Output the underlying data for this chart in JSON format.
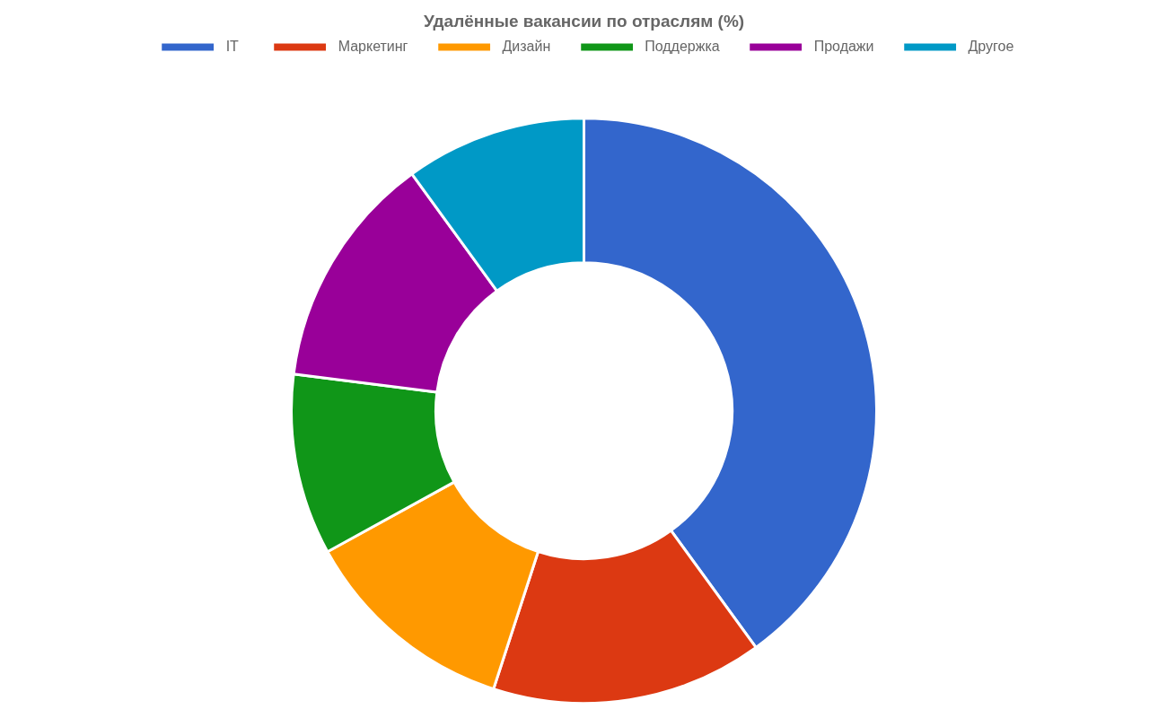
{
  "chart_data": {
    "type": "donut",
    "title": "Удалённые вакансии по отраслям (%)",
    "categories": [
      "IT",
      "Маркетинг",
      "Дизайн",
      "Поддержка",
      "Продажи",
      "Другое"
    ],
    "values": [
      40,
      15,
      12,
      10,
      13,
      10
    ],
    "colors": [
      "#3366cc",
      "#dc3912",
      "#ff9900",
      "#109618",
      "#990099",
      "#0099c6"
    ],
    "legend": "top"
  }
}
